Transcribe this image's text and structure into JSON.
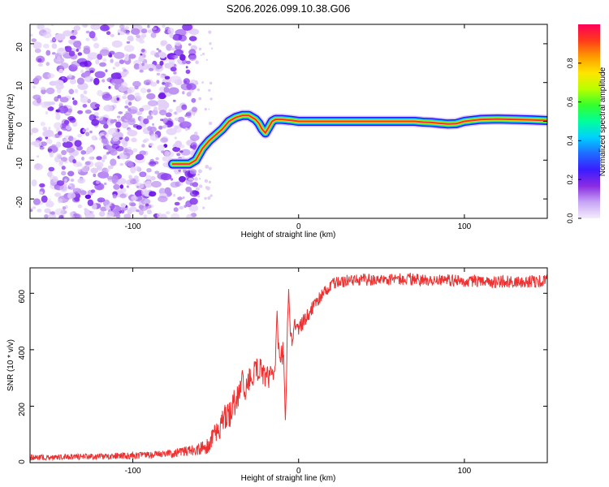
{
  "title": "S206.2026.099.10.38.G06",
  "colors": {
    "snr_line": "#ee3030",
    "ridge": "#e8233a",
    "noise": "#7a1ff0",
    "axis": "#000000"
  },
  "chart_data": [
    {
      "type": "heatmap",
      "title": "S206.2026.099.10.38.G06",
      "xlabel": "Height of straight line (km)",
      "ylabel": "Frequency (Hz)",
      "xlim": [
        -162,
        150
      ],
      "ylim": [
        -25,
        25
      ],
      "xticks": [
        -100,
        0,
        100
      ],
      "xtick_labels": [
        "-100",
        "0",
        "100"
      ],
      "yticks": [
        -20,
        -10,
        0,
        10,
        20
      ],
      "ytick_labels": [
        "-20",
        "-10",
        "0",
        "10",
        "20"
      ],
      "ridge": {
        "x": [
          -76,
          -70,
          -66,
          -62,
          -58,
          -54,
          -50,
          -46,
          -42,
          -38,
          -34,
          -30,
          -26,
          -24,
          -22,
          -20,
          -18,
          -16,
          -14,
          -10,
          -5,
          0,
          5,
          10,
          15,
          20,
          40,
          60,
          70,
          75,
          80,
          85,
          90,
          95,
          100,
          110,
          120,
          130,
          140,
          150
        ],
        "y": [
          -11,
          -11,
          -11,
          -10,
          -7,
          -5,
          -3.5,
          -2,
          0,
          1,
          1.5,
          1.5,
          0.5,
          -0.5,
          -2,
          -3,
          -1.5,
          0,
          0.5,
          0.5,
          0.3,
          0,
          0,
          0,
          0,
          0,
          0,
          0,
          0,
          -0.2,
          -0.3,
          -0.5,
          -0.7,
          -0.6,
          0,
          0.5,
          0.6,
          0.5,
          0.4,
          0.2
        ]
      },
      "noise_region": [
        -162,
        -62
      ],
      "colorbar": {
        "label": "Normalized spectral amplitude",
        "ticks": [
          0.0,
          0.2,
          0.4,
          0.6,
          0.8
        ],
        "tick_labels": [
          "0.0",
          "0.2",
          "0.4",
          "0.6",
          "0.8"
        ],
        "range": [
          0,
          1
        ],
        "colors": [
          "#f4ecfc",
          "#c7a6f5",
          "#8a2be2",
          "#3b1cff",
          "#1f6bff",
          "#00d0ff",
          "#00ff9c",
          "#34ff2c",
          "#b8ff00",
          "#ffe500",
          "#ff9a00",
          "#ff3b1a",
          "#ff0059"
        ]
      }
    },
    {
      "type": "line",
      "xlabel": "Height of straight line (km)",
      "ylabel": "SNR (10 * v/v)",
      "xlim": [
        -162,
        150
      ],
      "ylim": [
        0,
        690
      ],
      "xticks": [
        -100,
        0,
        100
      ],
      "xtick_labels": [
        "-100",
        "0",
        "100"
      ],
      "yticks": [
        0,
        200,
        400,
        600
      ],
      "ytick_labels": [
        "0",
        "200",
        "400",
        "600"
      ],
      "series": [
        {
          "name": "SNR",
          "x": [
            -162,
            -140,
            -120,
            -100,
            -80,
            -70,
            -60,
            -55,
            -50,
            -45,
            -42,
            -40,
            -36,
            -32,
            -28,
            -24,
            -20,
            -16,
            -12,
            -10,
            -8,
            -6,
            -4,
            -2,
            0,
            2,
            4,
            6,
            8,
            10,
            12,
            14,
            16,
            18,
            20,
            22,
            25,
            30,
            40,
            50,
            60,
            80,
            100,
            120,
            140,
            150
          ],
          "y": [
            18,
            20,
            22,
            25,
            30,
            38,
            48,
            60,
            110,
            150,
            175,
            205,
            240,
            270,
            305,
            335,
            300,
            310,
            360,
            390,
            400,
            420,
            450,
            480,
            475,
            490,
            510,
            525,
            545,
            560,
            580,
            595,
            610,
            620,
            630,
            635,
            640,
            645,
            648,
            645,
            650,
            648,
            642,
            640,
            642,
            645
          ],
          "noise": [
            10,
            10,
            11,
            12,
            14,
            16,
            22,
            28,
            35,
            55,
            60,
            55,
            50,
            50,
            50,
            48,
            45,
            45,
            45,
            45,
            42,
            40,
            38,
            35,
            32,
            30,
            28,
            26,
            24,
            22,
            22,
            22,
            22,
            22,
            22,
            22,
            22,
            22,
            22,
            22,
            22,
            22,
            22,
            22,
            22,
            22
          ],
          "peaks": [
            {
              "x": -34,
              "y": 330
            },
            {
              "x": -13,
              "y": 540
            },
            {
              "x": -6,
              "y": 615
            },
            {
              "x": -8,
              "y": 150
            }
          ]
        }
      ]
    }
  ]
}
